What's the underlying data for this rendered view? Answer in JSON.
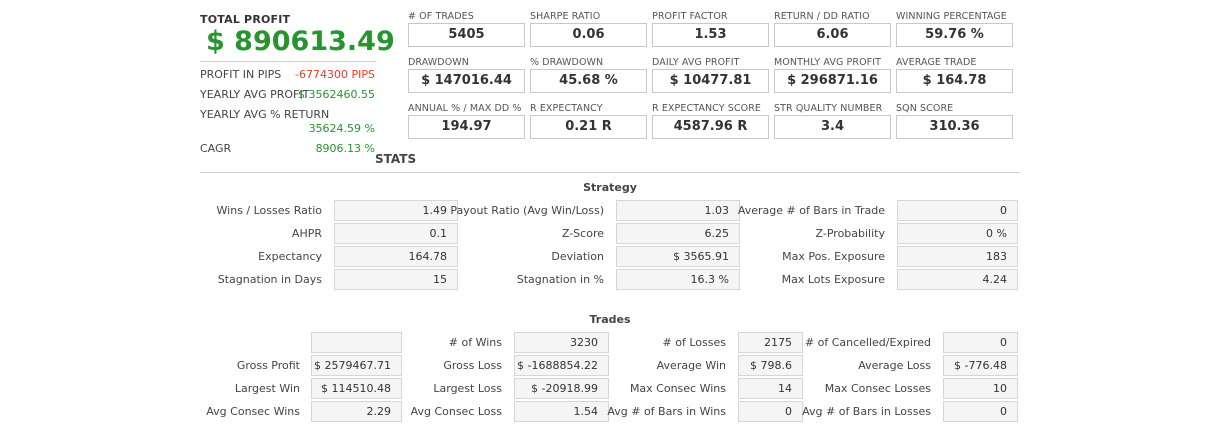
{
  "summary": {
    "total_profit_label": "TOTAL PROFIT",
    "total_profit_value": "$ 890613.49",
    "rows": [
      {
        "label": "PROFIT IN PIPS",
        "value": "-6774300 PIPS"
      },
      {
        "label": "YEARLY AVG PROFIT",
        "value": "$ 3562460.55"
      },
      {
        "label": "YEARLY AVG % RETURN",
        "value": "35624.59 %"
      },
      {
        "label": "CAGR",
        "value": "8906.13 %"
      }
    ]
  },
  "metrics": [
    {
      "label": "# OF TRADES",
      "value": "5405"
    },
    {
      "label": "SHARPE RATIO",
      "value": "0.06"
    },
    {
      "label": "PROFIT FACTOR",
      "value": "1.53"
    },
    {
      "label": "RETURN / DD RATIO",
      "value": "6.06"
    },
    {
      "label": "WINNING PERCENTAGE",
      "value": "59.76 %"
    },
    {
      "label": "DRAWDOWN",
      "value": "$ 147016.44"
    },
    {
      "label": "% DRAWDOWN",
      "value": "45.68 %"
    },
    {
      "label": "DAILY AVG PROFIT",
      "value": "$ 10477.81"
    },
    {
      "label": "MONTHLY AVG PROFIT",
      "value": "$ 296871.16"
    },
    {
      "label": "AVERAGE TRADE",
      "value": "$ 164.78"
    },
    {
      "label": "ANNUAL % / MAX DD %",
      "value": "194.97"
    },
    {
      "label": "R EXPECTANCY",
      "value": "0.21 R"
    },
    {
      "label": "R EXPECTANCY SCORE",
      "value": "4587.96 R"
    },
    {
      "label": "STR QUALITY NUMBER",
      "value": "3.4"
    },
    {
      "label": "SQN SCORE",
      "value": "310.36"
    }
  ],
  "stats_title": "STATS",
  "strategy": {
    "title": "Strategy",
    "rows": [
      [
        {
          "label": "Wins / Losses Ratio",
          "value": "1.49"
        },
        {
          "label": "Payout Ratio (Avg Win/Loss)",
          "value": "1.03"
        },
        {
          "label": "Average # of Bars in Trade",
          "value": "0"
        }
      ],
      [
        {
          "label": "AHPR",
          "value": "0.1"
        },
        {
          "label": "Z-Score",
          "value": "6.25"
        },
        {
          "label": "Z-Probability",
          "value": "0 %"
        }
      ],
      [
        {
          "label": "Expectancy",
          "value": "164.78"
        },
        {
          "label": "Deviation",
          "value": "$ 3565.91"
        },
        {
          "label": "Max Pos. Exposure",
          "value": "183"
        }
      ],
      [
        {
          "label": "Stagnation in Days",
          "value": "15"
        },
        {
          "label": "Stagnation in %",
          "value": "16.3 %"
        },
        {
          "label": "Max Lots Exposure",
          "value": "4.24"
        }
      ]
    ]
  },
  "trades": {
    "title": "Trades",
    "rows": [
      [
        {
          "label": "",
          "value": ""
        },
        {
          "label": "# of Wins",
          "value": "3230"
        },
        {
          "label": "# of Losses",
          "value": "2175"
        },
        {
          "label": "# of Cancelled/Expired",
          "value": "0"
        }
      ],
      [
        {
          "label": "Gross Profit",
          "value": "$ 2579467.71"
        },
        {
          "label": "Gross Loss",
          "value": "$ -1688854.22"
        },
        {
          "label": "Average Win",
          "value": "$ 798.6"
        },
        {
          "label": "Average Loss",
          "value": "$ -776.48"
        }
      ],
      [
        {
          "label": "Largest Win",
          "value": "$ 114510.48"
        },
        {
          "label": "Largest Loss",
          "value": "$ -20918.99"
        },
        {
          "label": "Max Consec Wins",
          "value": "14"
        },
        {
          "label": "Max Consec Losses",
          "value": "10"
        }
      ],
      [
        {
          "label": "Avg Consec Wins",
          "value": "2.29"
        },
        {
          "label": "Avg Consec Loss",
          "value": "1.54"
        },
        {
          "label": "Avg # of Bars in Wins",
          "value": "0"
        },
        {
          "label": "Avg # of Bars in Losses",
          "value": "0"
        }
      ]
    ]
  }
}
